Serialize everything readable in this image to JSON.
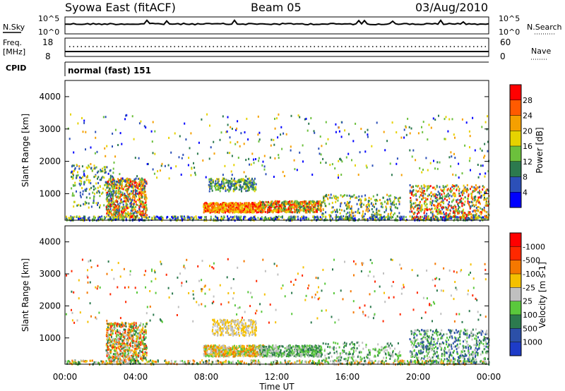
{
  "header": {
    "station": "Syowa East (fitACF)",
    "beam": "Beam 05",
    "date": "03/Aug/2010"
  },
  "noise_panel": {
    "left_label": "N.Sky",
    "right_label": "N.Search",
    "left_ticks": [
      "10^5",
      "10^0"
    ],
    "right_ticks": [
      "10^5",
      "10^0"
    ]
  },
  "freq_panel": {
    "left_label_1": "Freq.",
    "left_label_2": "[MHz]",
    "right_label": "Nave",
    "left_ticks": [
      "18",
      "8"
    ],
    "right_ticks": [
      "60",
      "0"
    ]
  },
  "cpid": {
    "label": "CPID",
    "mode": "normal (fast) 151"
  },
  "chart_data": [
    {
      "type": "heatmap",
      "title": "",
      "xlabel": "",
      "ylabel": "Slant Range [km]",
      "ylim": [
        180,
        4500
      ],
      "yticks": [
        "1000",
        "2000",
        "3000",
        "4000"
      ],
      "colorbar": {
        "label": "Power [dB]",
        "ticks": [
          "4",
          "8",
          "12",
          "16",
          "20",
          "24",
          "28"
        ],
        "colors": [
          "#0000ff",
          "#2c50b8",
          "#2c7a4e",
          "#6cc03c",
          "#e6d200",
          "#f5a000",
          "#ff5a00",
          "#ff0000"
        ]
      }
    },
    {
      "type": "heatmap",
      "title": "",
      "xlabel": "Time UT",
      "ylabel": "Slant Range [km]",
      "ylim": [
        180,
        4500
      ],
      "yticks": [
        "1000",
        "2000",
        "3000",
        "4000"
      ],
      "xticks": [
        "00:00",
        "04:00",
        "08:00",
        "12:00",
        "16:00",
        "20:00",
        "00:00"
      ],
      "colorbar": {
        "label": "Velocity [m s-1]",
        "ticks": [
          "1000",
          "500",
          "100",
          "25",
          "-25",
          "-100",
          "-500",
          "-1000"
        ],
        "colors": [
          "#1e3cc8",
          "#2c50a8",
          "#2c7a4e",
          "#5ac83c",
          "#c0c0c0",
          "#f5c000",
          "#f57800",
          "#ff2800",
          "#ff0000"
        ]
      }
    }
  ]
}
